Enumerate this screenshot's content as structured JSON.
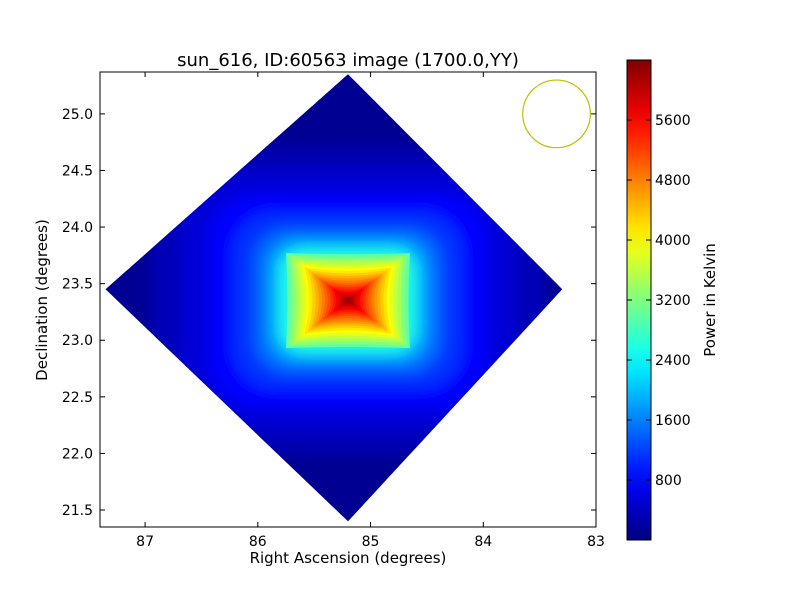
{
  "chart_data": {
    "type": "heatmap",
    "title": "sun_616, ID:60563 image (1700.0,YY)",
    "xlabel": "Right Ascension (degrees)",
    "ylabel": "Declination (degrees)",
    "xlim": [
      87.4,
      83.0
    ],
    "ylim": [
      21.35,
      25.37
    ],
    "xticks": [
      87,
      86,
      85,
      84,
      83
    ],
    "yticks": [
      21.5,
      22.0,
      22.5,
      23.0,
      23.5,
      24.0,
      24.5,
      25.0
    ],
    "colorbar": {
      "label": "Power in Kelvin",
      "range": [
        0,
        6400
      ],
      "ticks": [
        800,
        1600,
        2400,
        3200,
        4000,
        4800,
        5600
      ],
      "colormap": "jet"
    },
    "footprint": {
      "shape": "diamond",
      "vertices_radec": [
        [
          85.2,
          25.35
        ],
        [
          83.3,
          23.45
        ],
        [
          85.2,
          21.4
        ],
        [
          87.35,
          23.45
        ]
      ],
      "background_level": 120
    },
    "source": {
      "center_radec": [
        85.2,
        23.35
      ],
      "peak": 6250,
      "core_half_width_ra": 0.55,
      "core_half_width_dec": 0.42,
      "core_edge_level": 3000
    },
    "beam": {
      "center_radec": [
        83.35,
        25.0
      ],
      "radius_deg": 0.3,
      "color": "#bfbf00"
    }
  }
}
